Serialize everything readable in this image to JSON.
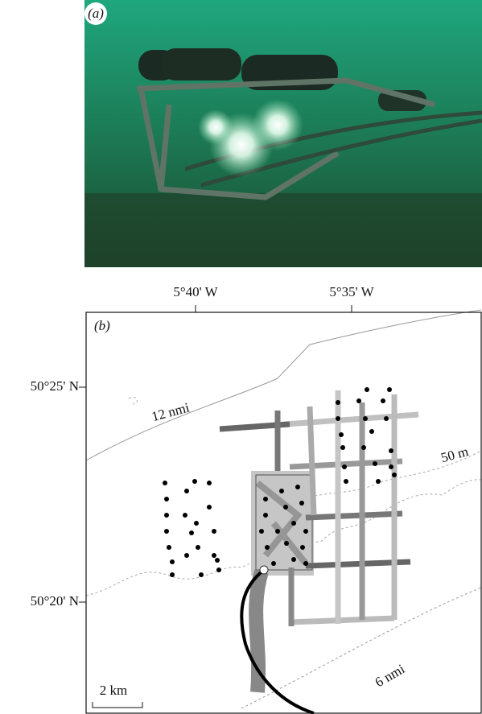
{
  "panel_a": {
    "label": "(a)"
  },
  "panel_b": {
    "label": "(b)",
    "x_axis_labels": [
      "5°40' W",
      "5°35' W"
    ],
    "y_axis_labels": [
      "50°25' N",
      "50°20' N"
    ],
    "annotations": [
      "12 nmi",
      "50 m",
      "6 nmi"
    ],
    "scale_bar": "2 km"
  }
}
